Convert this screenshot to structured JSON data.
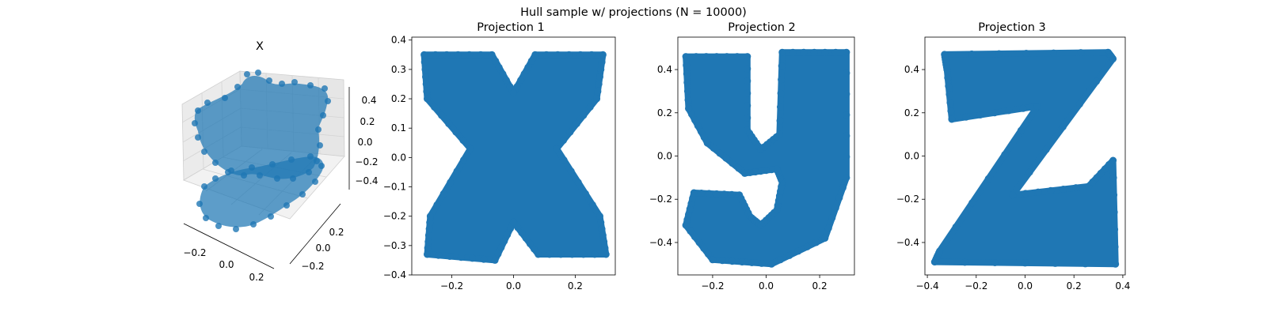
{
  "figure": {
    "suptitle": "Hull sample w/ projections (N = 10000)"
  },
  "colors": {
    "points": "#1f77b4",
    "axes": "#000000",
    "pane_side": "#ebebeb",
    "pane_floor": "#f2f2f2",
    "grid3d": "#d0d0d0"
  },
  "chart_data": [
    {
      "type": "scatter",
      "projection": "3d",
      "title": "X",
      "x_ticks": [
        "−0.2",
        "0.0",
        "0.2"
      ],
      "y_ticks": [
        "−0.2",
        "0.0",
        "0.2"
      ],
      "z_ticks": [
        "−0.4",
        "−0.2",
        "0.0",
        "0.2",
        "0.4"
      ],
      "xlim": [
        -0.35,
        0.35
      ],
      "ylim": [
        -0.3,
        0.3
      ],
      "zlim": [
        -0.5,
        0.5
      ],
      "n_points": 10000,
      "shape": "point cloud of the hull formed by letters x, y, z"
    },
    {
      "type": "scatter",
      "title": "Projection 1",
      "glyph": "x",
      "xlim": [
        -0.33,
        0.33
      ],
      "ylim": [
        -0.4,
        0.41
      ],
      "x_ticks": [
        -0.2,
        0.0,
        0.2
      ],
      "x_tick_labels": [
        "−0.2",
        "0.0",
        "0.2"
      ],
      "y_ticks": [
        -0.4,
        -0.3,
        -0.2,
        -0.1,
        0.0,
        0.1,
        0.2,
        0.3,
        0.4
      ],
      "y_tick_labels": [
        "−0.4",
        "−0.3",
        "−0.2",
        "−0.1",
        "0.0",
        "0.1",
        "0.2",
        "0.3",
        "0.4"
      ],
      "extent": {
        "x": [
          -0.3,
          0.3
        ],
        "y": [
          -0.36,
          0.36
        ]
      }
    },
    {
      "type": "scatter",
      "title": "Projection 2",
      "glyph": "y",
      "xlim": [
        -0.33,
        0.33
      ],
      "ylim": [
        -0.55,
        0.55
      ],
      "x_ticks": [
        -0.2,
        0.0,
        0.2
      ],
      "x_tick_labels": [
        "−0.2",
        "0.0",
        "0.2"
      ],
      "y_ticks": [
        -0.4,
        -0.2,
        0.0,
        0.2,
        0.4
      ],
      "y_tick_labels": [
        "−0.4",
        "−0.2",
        "0.0",
        "0.2",
        "0.4"
      ],
      "extent": {
        "x": [
          -0.3,
          0.3
        ],
        "y": [
          -0.5,
          0.48
        ]
      }
    },
    {
      "type": "scatter",
      "title": "Projection 3",
      "glyph": "z",
      "xlim": [
        -0.41,
        0.41
      ],
      "ylim": [
        -0.55,
        0.55
      ],
      "x_ticks": [
        -0.4,
        -0.2,
        0.0,
        0.2,
        0.4
      ],
      "x_tick_labels": [
        "−0.4",
        "−0.2",
        "0.0",
        "0.2",
        "0.4"
      ],
      "y_ticks": [
        -0.4,
        -0.2,
        0.0,
        0.2,
        0.4
      ],
      "y_tick_labels": [
        "−0.4",
        "−0.2",
        "0.0",
        "0.2",
        "0.4"
      ],
      "extent": {
        "x": [
          -0.37,
          0.37
        ],
        "y": [
          -0.5,
          0.48
        ]
      }
    }
  ]
}
